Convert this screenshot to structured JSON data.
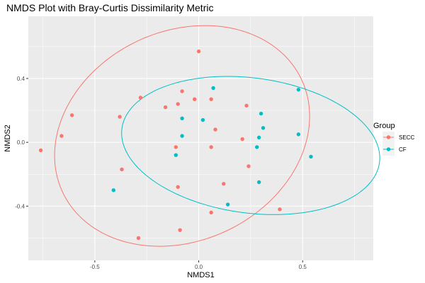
{
  "chart_data": {
    "type": "scatter",
    "title": "NMDS Plot with Bray-Curtis Dissimilarity Metric",
    "xlabel": "NMDS1",
    "ylabel": "NMDS2",
    "xlim": [
      -0.82,
      0.84
    ],
    "ylim": [
      -0.74,
      0.79
    ],
    "x_ticks": [
      -0.5,
      0.0,
      0.5
    ],
    "x_tick_labels": [
      "-0.5",
      "0.0",
      "0.5"
    ],
    "y_ticks": [
      -0.4,
      0.0,
      0.4
    ],
    "y_tick_labels": [
      "-0.4",
      "0.0",
      "0.4"
    ],
    "grid": true,
    "legend": {
      "title": "Group",
      "position": "right"
    },
    "series": [
      {
        "name": "SECC",
        "color": "#F8766D",
        "x": [
          -0.76,
          -0.66,
          -0.61,
          -0.38,
          -0.28,
          -0.37,
          -0.29,
          -0.16,
          -0.1,
          -0.08,
          -0.02,
          0.06,
          -0.11,
          -0.1,
          0.0,
          0.06,
          0.08,
          -0.09,
          0.12,
          0.06,
          0.21,
          0.23,
          0.24,
          0.39
        ],
        "y": [
          -0.05,
          0.04,
          0.17,
          0.16,
          0.28,
          -0.17,
          -0.6,
          0.22,
          0.24,
          0.32,
          0.27,
          0.27,
          -0.03,
          -0.28,
          0.57,
          -0.03,
          0.08,
          -0.55,
          -0.26,
          -0.44,
          0.02,
          0.23,
          -0.15,
          -0.42
        ]
      },
      {
        "name": "CF",
        "color": "#00BFC4",
        "x": [
          -0.41,
          -0.11,
          -0.08,
          -0.08,
          0.02,
          0.07,
          0.14,
          0.28,
          0.29,
          0.29,
          0.3,
          0.31,
          0.48,
          0.48,
          0.54
        ],
        "y": [
          -0.3,
          -0.08,
          0.04,
          0.15,
          0.14,
          0.34,
          -0.39,
          -0.03,
          0.03,
          -0.25,
          0.18,
          0.09,
          0.33,
          0.05,
          -0.09
        ]
      }
    ],
    "ellipses": [
      {
        "group": "SECC",
        "color": "#F8766D",
        "center": [
          -0.08,
          0.04
        ],
        "semi_axes": [
          0.58,
          0.72
        ],
        "angle_deg": -28
      },
      {
        "group": "CF",
        "color": "#00BFC4",
        "center": [
          0.25,
          -0.02
        ],
        "semi_axes": [
          0.63,
          0.42
        ],
        "angle_deg": -13
      }
    ]
  }
}
